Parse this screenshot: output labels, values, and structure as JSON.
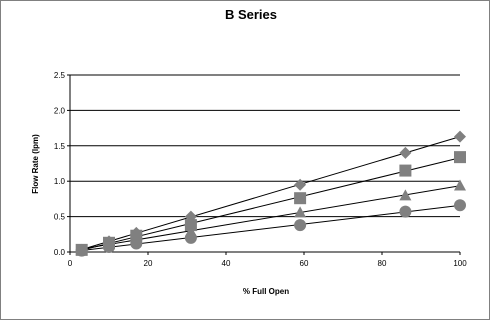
{
  "chart_data": {
    "type": "scatter",
    "title": "B Series",
    "xlabel": "% Full Open",
    "ylabel": "Flow Rate (lpm)",
    "xlim": [
      0,
      100
    ],
    "ylim": [
      0,
      2.5
    ],
    "xticks": [
      "0",
      "20",
      "40",
      "60",
      "80",
      "100"
    ],
    "yticks": [
      "0.0",
      "0.5",
      "1.0",
      "1.5",
      "2.0",
      "2.5"
    ],
    "grid": "horizontal",
    "marker_color": "#808080",
    "line_color": "#000000",
    "series": [
      {
        "marker": "diamond",
        "x": [
          3,
          10,
          17,
          31,
          59,
          86,
          100
        ],
        "y": [
          0.03,
          0.15,
          0.27,
          0.5,
          0.95,
          1.4,
          1.63
        ]
      },
      {
        "marker": "square",
        "x": [
          3,
          10,
          17,
          31,
          59,
          86,
          100
        ],
        "y": [
          0.03,
          0.13,
          0.23,
          0.38,
          0.76,
          1.15,
          1.34
        ]
      },
      {
        "marker": "triangle",
        "x": [
          3,
          10,
          17,
          31,
          59,
          86,
          100
        ],
        "y": [
          0.03,
          0.11,
          0.19,
          0.29,
          0.56,
          0.8,
          0.94
        ]
      },
      {
        "marker": "circle",
        "x": [
          3,
          10,
          17,
          31,
          59,
          86,
          100
        ],
        "y": [
          0.02,
          0.07,
          0.12,
          0.2,
          0.38,
          0.57,
          0.66
        ]
      }
    ]
  }
}
